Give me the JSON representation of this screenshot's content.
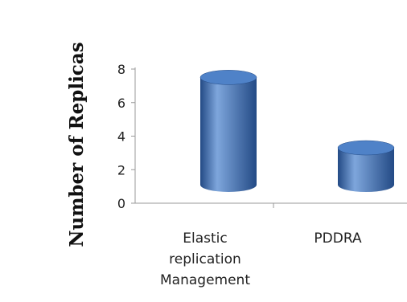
{
  "chart_data": {
    "type": "bar",
    "style": "3d-cylinder",
    "categories": [
      "Elastic replication Management",
      "PDDRA"
    ],
    "category_lines": [
      [
        "Elastic",
        "replication",
        "Management"
      ],
      [
        "PDDRA"
      ]
    ],
    "values": [
      7.6,
      3.4
    ],
    "title": "",
    "xlabel": "",
    "ylabel": "Number  of Replicas",
    "ylim": [
      0,
      8
    ],
    "yticks": [
      0,
      2,
      4,
      6,
      8
    ],
    "grid": false,
    "legend": "none",
    "colors": {
      "bar": "#3f6fb5",
      "bar_light": "#7ea6dc",
      "bar_dark": "#234a85",
      "bar_top": "#4f82c8",
      "axis": "#999999"
    }
  }
}
